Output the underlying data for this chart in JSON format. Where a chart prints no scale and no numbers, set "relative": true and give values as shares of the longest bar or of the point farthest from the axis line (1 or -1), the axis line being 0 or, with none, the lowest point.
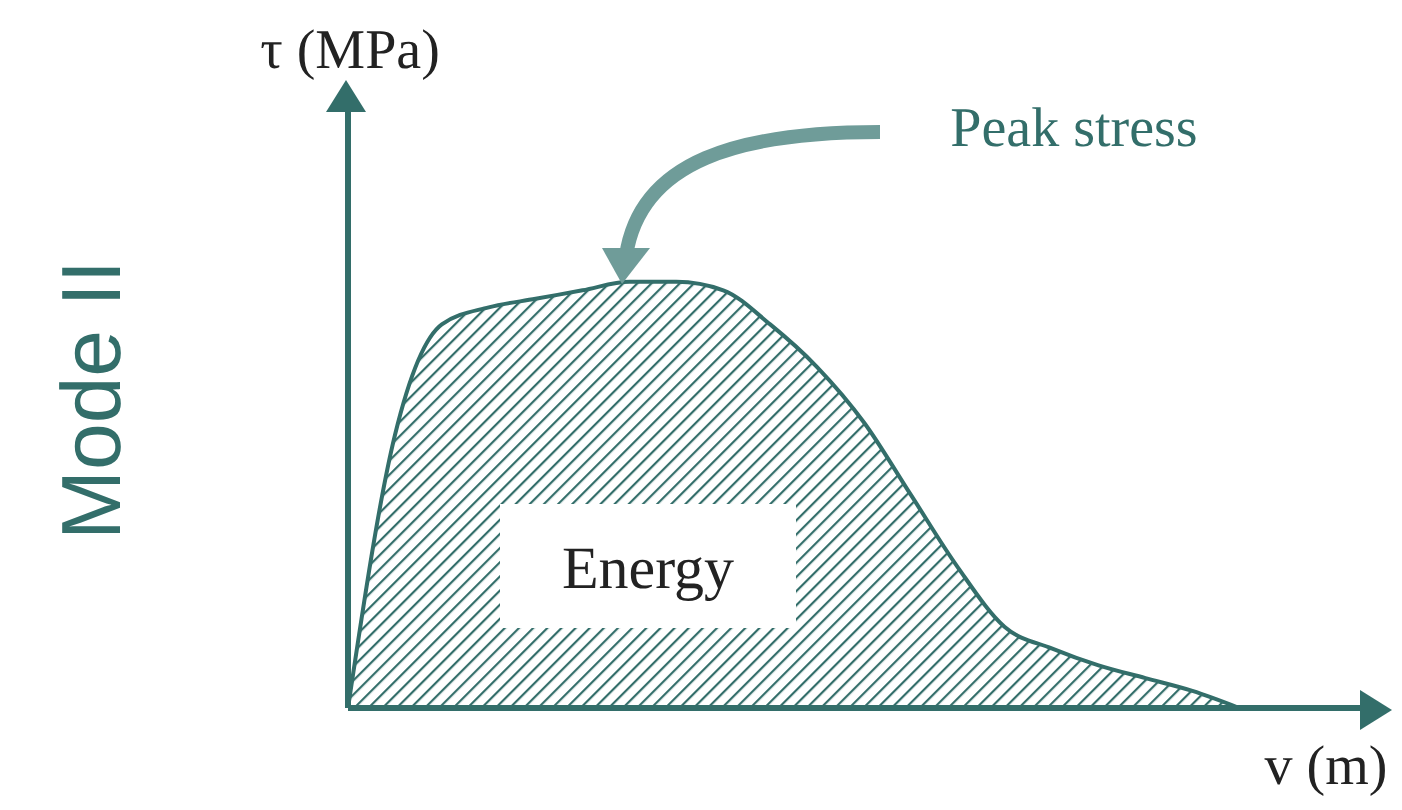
{
  "chart_data": {
    "type": "area",
    "title": "Mode II",
    "xlabel": "v (m)",
    "ylabel": "τ (MPa)",
    "relative": true,
    "color": "#336e6a",
    "categories": [
      null,
      null,
      null,
      null,
      null,
      null,
      null,
      null,
      null,
      null,
      null,
      null,
      null,
      null,
      null,
      null,
      null,
      null,
      null,
      null,
      null,
      null,
      null
    ],
    "values": [
      0,
      0.64,
      0.9,
      0.94,
      0.96,
      0.98,
      1,
      1,
      0.98,
      0.9,
      0.8,
      0.67,
      0.5,
      0.33,
      0.19,
      0.14,
      0.1,
      0.07,
      0.04,
      0,
      null,
      null,
      null
    ],
    "annotations": [
      "Peak stress",
      "Energy"
    ],
    "grid": false,
    "legend": false
  }
}
